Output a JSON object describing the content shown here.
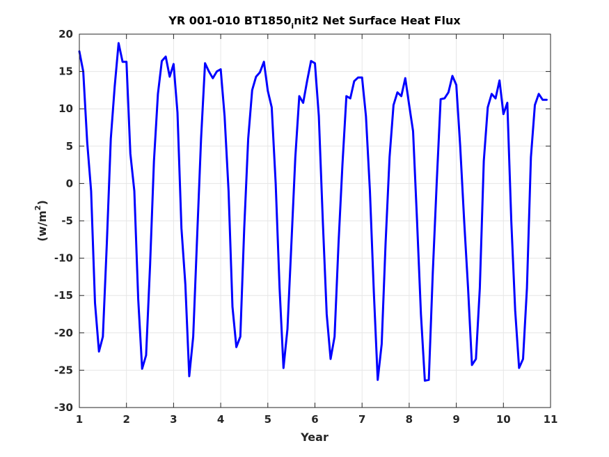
{
  "chart_data": {
    "type": "line",
    "title": "YR 001-010 BT1850",
    "title_subscript": "i",
    "title_rest": "nit2 Net Surface Heat Flux",
    "xlabel": "Year",
    "ylabel_prefix": "(w/m",
    "ylabel_sup": "2",
    "ylabel_suffix": ")",
    "xlim": [
      1,
      11
    ],
    "ylim": [
      -30,
      20
    ],
    "xticks": [
      1,
      2,
      3,
      4,
      5,
      6,
      7,
      8,
      9,
      10,
      11
    ],
    "yticks": [
      -30,
      -25,
      -20,
      -15,
      -10,
      -5,
      0,
      5,
      10,
      15,
      20
    ],
    "grid": true,
    "colors": {
      "line": "#0000ff",
      "grid": "#e6e6e6",
      "axes": "#262626"
    },
    "series": [
      {
        "x": [
          1.0,
          1.083,
          1.167,
          1.25,
          1.333,
          1.417,
          1.5,
          1.583,
          1.667,
          1.75,
          1.833,
          1.917,
          2.0,
          2.083,
          2.167,
          2.25,
          2.333,
          2.417,
          2.5,
          2.583,
          2.667,
          2.75,
          2.833,
          2.917,
          3.0,
          3.083,
          3.167,
          3.25,
          3.333,
          3.417,
          3.5,
          3.583,
          3.667,
          3.75,
          3.833,
          3.917,
          4.0,
          4.083,
          4.167,
          4.25,
          4.333,
          4.417,
          4.5,
          4.583,
          4.667,
          4.75,
          4.833,
          4.917,
          5.0,
          5.083,
          5.167,
          5.25,
          5.333,
          5.417,
          5.5,
          5.583,
          5.667,
          5.75,
          5.833,
          5.917,
          6.0,
          6.083,
          6.167,
          6.25,
          6.333,
          6.417,
          6.5,
          6.583,
          6.667,
          6.75,
          6.833,
          6.917,
          7.0,
          7.083,
          7.167,
          7.25,
          7.333,
          7.417,
          7.5,
          7.583,
          7.667,
          7.75,
          7.833,
          7.917,
          8.0,
          8.083,
          8.167,
          8.25,
          8.333,
          8.417,
          8.5,
          8.583,
          8.667,
          8.75,
          8.833,
          8.917,
          9.0,
          9.083,
          9.167,
          9.25,
          9.333,
          9.417,
          9.5,
          9.583,
          9.667,
          9.75,
          9.833,
          9.917,
          10.0,
          10.083,
          10.167,
          10.25,
          10.333,
          10.417,
          10.5,
          10.583,
          10.667,
          10.75,
          10.833,
          10.917
        ],
        "values": [
          17.7,
          15.0,
          5.5,
          -1.0,
          -16.0,
          -22.5,
          -20.5,
          -8.0,
          6.0,
          13.0,
          18.8,
          16.3,
          16.3,
          4.0,
          -1.0,
          -15.5,
          -24.8,
          -23.0,
          -11.0,
          3.0,
          12.0,
          16.4,
          17.0,
          14.3,
          16.0,
          9.5,
          -6.0,
          -13.5,
          -25.8,
          -20.5,
          -7.0,
          6.0,
          16.1,
          15.0,
          14.1,
          15.0,
          15.3,
          9.0,
          -1.0,
          -16.5,
          -21.9,
          -20.5,
          -6.0,
          6.0,
          12.5,
          14.3,
          14.9,
          16.3,
          12.4,
          10.2,
          0.0,
          -14.0,
          -24.7,
          -19.5,
          -8.0,
          3.5,
          11.7,
          10.8,
          13.7,
          16.4,
          16.1,
          9.0,
          -5.0,
          -17.5,
          -23.5,
          -20.5,
          -8.0,
          2.5,
          11.7,
          11.4,
          13.7,
          14.2,
          14.2,
          9.0,
          -1.0,
          -14.5,
          -26.3,
          -21.5,
          -8.0,
          3.5,
          10.5,
          12.2,
          11.7,
          14.1,
          10.5,
          7.0,
          -5.0,
          -17.5,
          -26.4,
          -26.3,
          -12.0,
          0.0,
          11.3,
          11.4,
          12.2,
          14.4,
          13.2,
          5.0,
          -5.0,
          -14.0,
          -24.3,
          -23.5,
          -14.0,
          3.0,
          10.2,
          12.0,
          11.4,
          13.8,
          9.3,
          10.8,
          -5.0,
          -17.0,
          -24.7,
          -23.5,
          -14.0,
          3.5,
          10.5,
          12.0,
          11.2,
          11.2
        ]
      }
    ]
  }
}
